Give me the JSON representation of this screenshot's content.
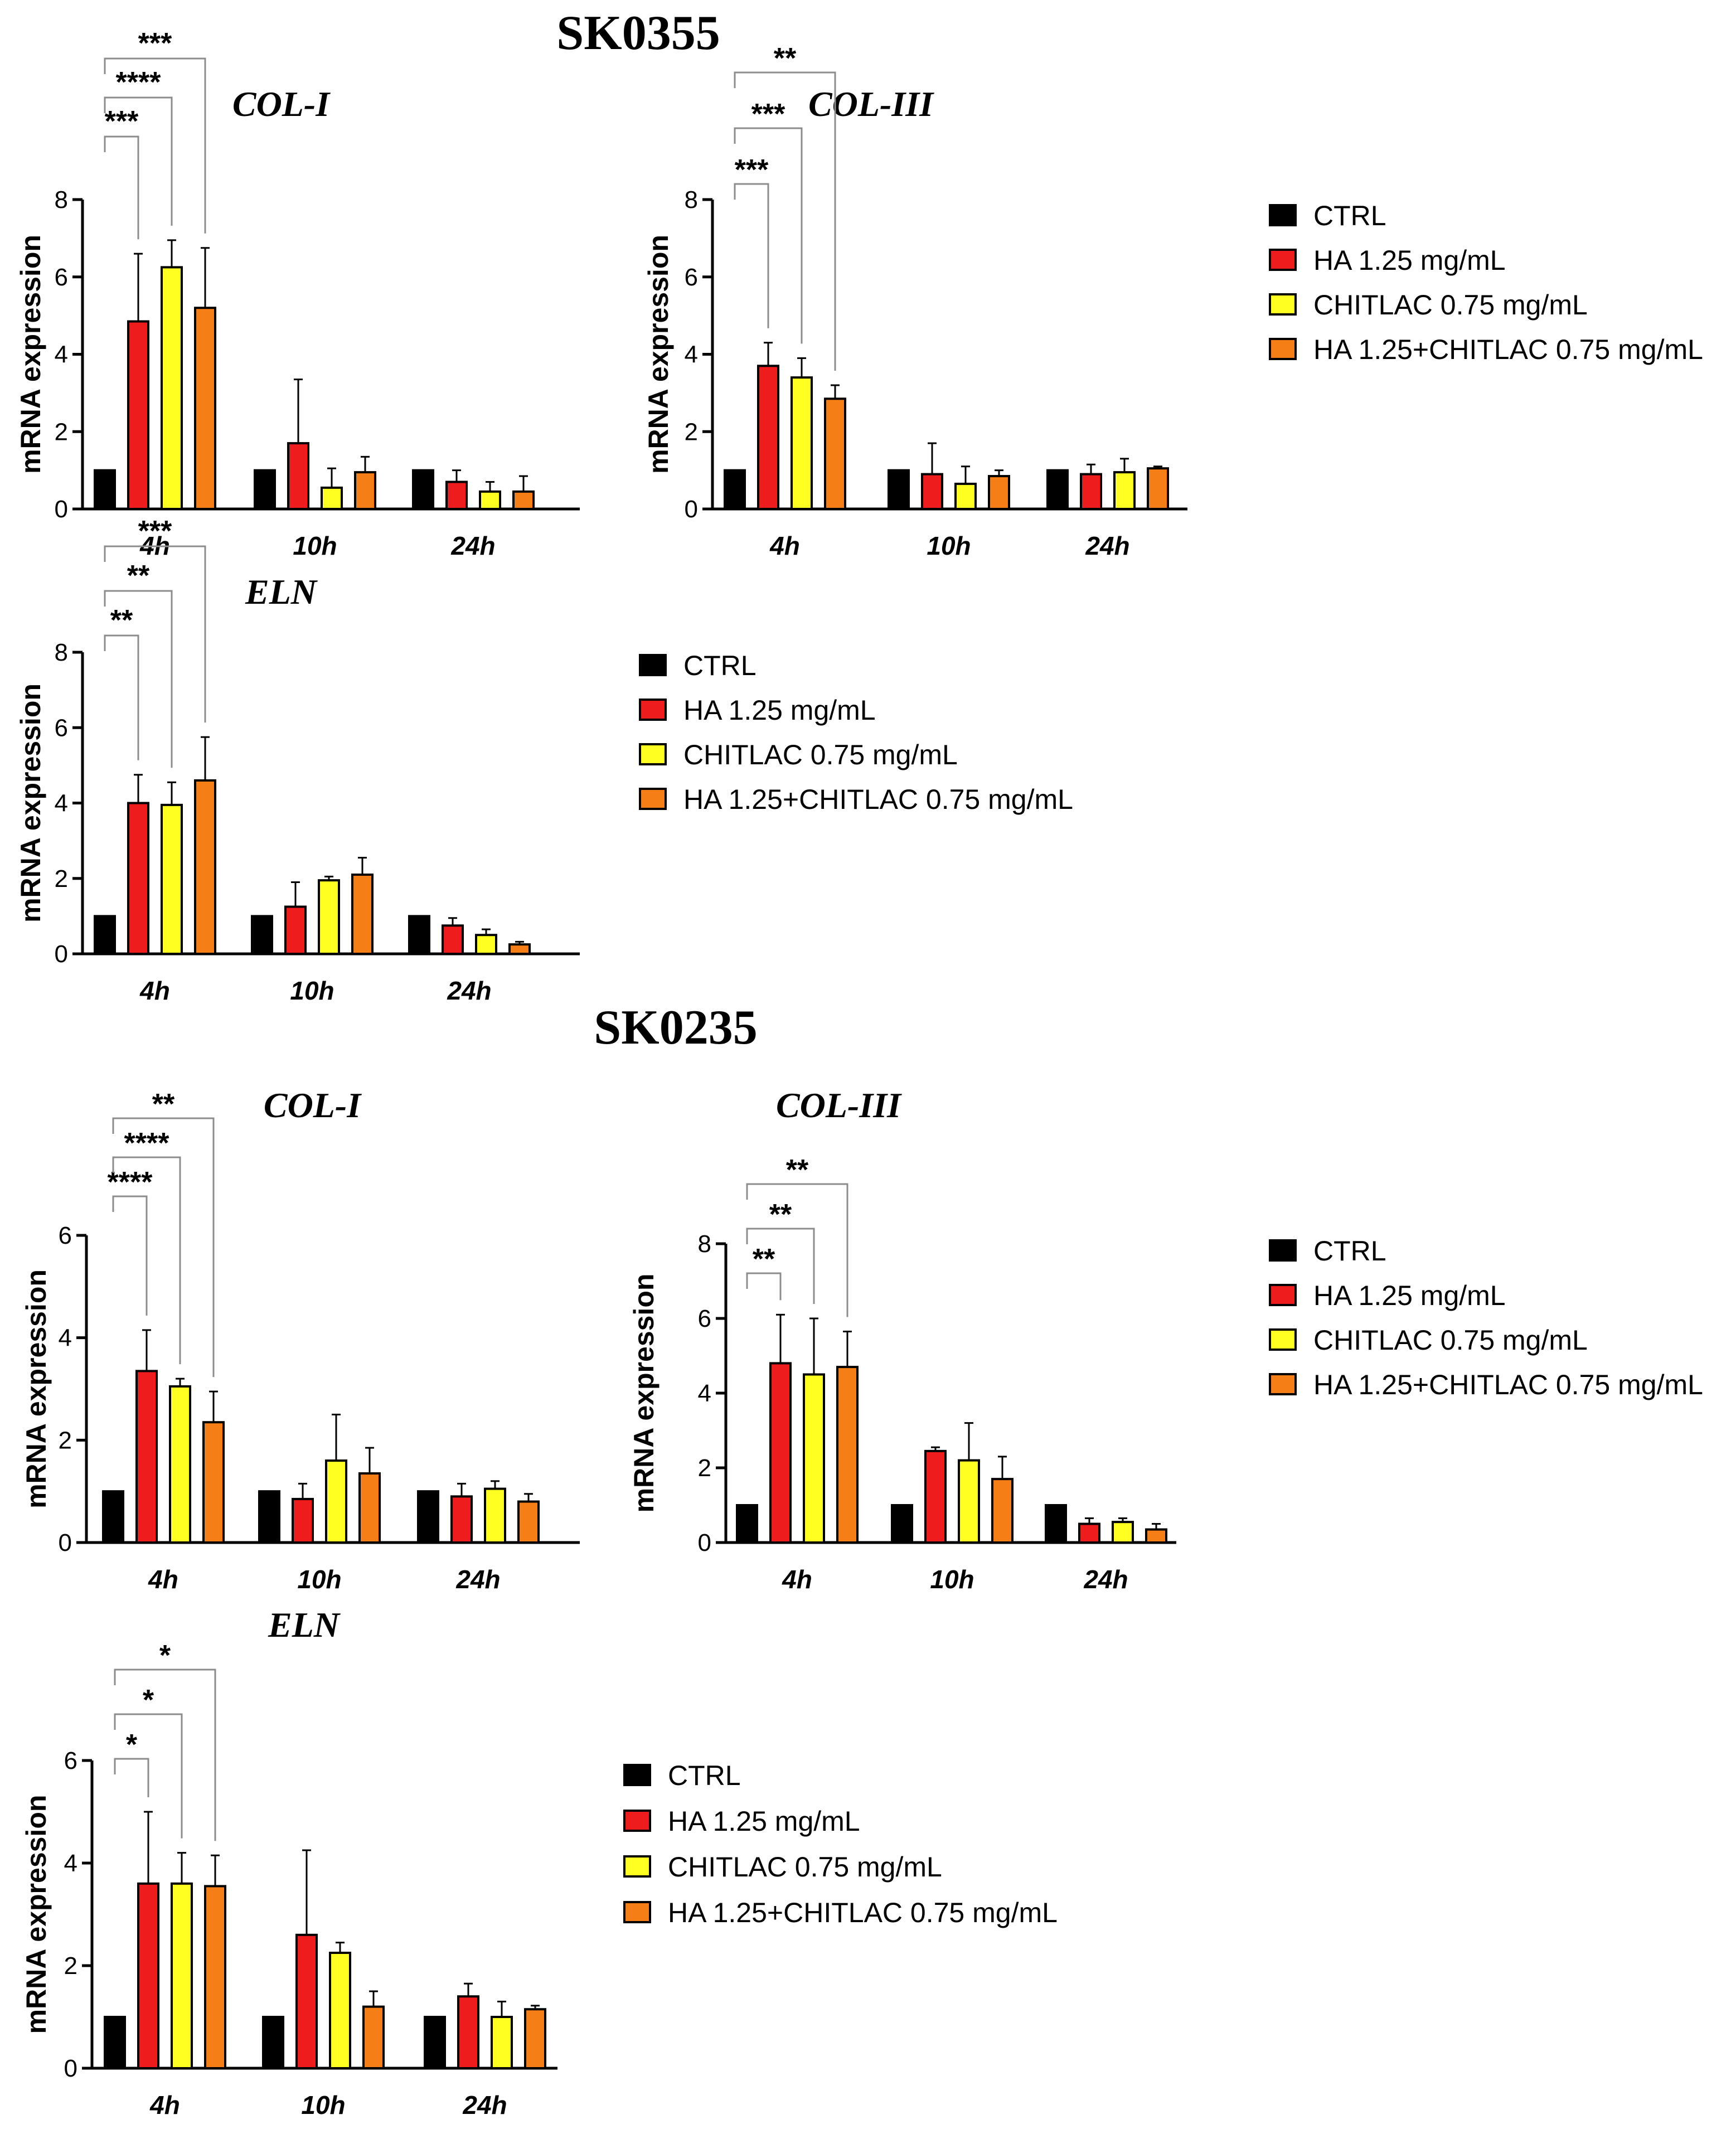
{
  "sections": [
    {
      "title": "SK0355"
    },
    {
      "title": "SK0235"
    }
  ],
  "colors": {
    "CTRL": "#000000",
    "HA 1.25 mg/mL": "#ee1c1c",
    "CHITLAC 0.75 mg/mL": "#ffff22",
    "HA 1.25+CHITLAC 0.75 mg/mL": "#f57f16"
  },
  "legend_entries": [
    "CTRL",
    "HA 1.25 mg/mL",
    "CHITLAC 0.75 mg/mL",
    "HA 1.25+CHITLAC 0.75 mg/mL"
  ],
  "chart_data": [
    {
      "type": "bar",
      "section": "SK0355",
      "title": "COL-I",
      "ylabel": "mRNA expression",
      "ylim": [
        0,
        8
      ],
      "yticks": [
        0,
        2,
        4,
        6,
        8
      ],
      "categories": [
        "4h",
        "10h",
        "24h"
      ],
      "series": [
        {
          "name": "CTRL",
          "values": [
            1.0,
            1.0,
            1.0
          ],
          "errors": [
            0,
            0,
            0
          ]
        },
        {
          "name": "HA 1.25 mg/mL",
          "values": [
            4.85,
            1.7,
            0.7
          ],
          "errors": [
            1.75,
            1.65,
            0.3
          ]
        },
        {
          "name": "CHITLAC 0.75 mg/mL",
          "values": [
            6.25,
            0.55,
            0.45
          ],
          "errors": [
            0.7,
            0.5,
            0.25
          ]
        },
        {
          "name": "HA 1.25+CHITLAC 0.75 mg/mL",
          "values": [
            5.2,
            0.95,
            0.45
          ],
          "errors": [
            1.55,
            0.4,
            0.4
          ]
        }
      ],
      "significance": [
        {
          "series": 1,
          "label": "***"
        },
        {
          "series": 2,
          "label": "****"
        },
        {
          "series": 3,
          "label": "***"
        }
      ]
    },
    {
      "type": "bar",
      "section": "SK0355",
      "title": "COL-III",
      "ylabel": "mRNA expression",
      "ylim": [
        0,
        8
      ],
      "yticks": [
        0,
        2,
        4,
        6,
        8
      ],
      "categories": [
        "4h",
        "10h",
        "24h"
      ],
      "series": [
        {
          "name": "CTRL",
          "values": [
            1.0,
            1.0,
            1.0
          ],
          "errors": [
            0,
            0,
            0
          ]
        },
        {
          "name": "HA 1.25 mg/mL",
          "values": [
            3.7,
            0.9,
            0.9
          ],
          "errors": [
            0.6,
            0.8,
            0.25
          ]
        },
        {
          "name": "CHITLAC 0.75 mg/mL",
          "values": [
            3.4,
            0.65,
            0.95
          ],
          "errors": [
            0.5,
            0.45,
            0.35
          ]
        },
        {
          "name": "HA 1.25+CHITLAC 0.75 mg/mL",
          "values": [
            2.85,
            0.85,
            1.05
          ],
          "errors": [
            0.35,
            0.15,
            0.05
          ]
        }
      ],
      "significance": [
        {
          "series": 1,
          "label": "***"
        },
        {
          "series": 2,
          "label": "***"
        },
        {
          "series": 3,
          "label": "**"
        }
      ]
    },
    {
      "type": "bar",
      "section": "SK0355",
      "title": "ELN",
      "ylabel": "mRNA expression",
      "ylim": [
        0,
        8
      ],
      "yticks": [
        0,
        2,
        4,
        6,
        8
      ],
      "categories": [
        "4h",
        "10h",
        "24h"
      ],
      "series": [
        {
          "name": "CTRL",
          "values": [
            1.0,
            1.0,
            1.0
          ],
          "errors": [
            0,
            0,
            0
          ]
        },
        {
          "name": "HA 1.25 mg/mL",
          "values": [
            4.0,
            1.25,
            0.75
          ],
          "errors": [
            0.75,
            0.65,
            0.2
          ]
        },
        {
          "name": "CHITLAC 0.75 mg/mL",
          "values": [
            3.95,
            1.95,
            0.5
          ],
          "errors": [
            0.6,
            0.1,
            0.15
          ]
        },
        {
          "name": "HA 1.25+CHITLAC 0.75 mg/mL",
          "values": [
            4.6,
            2.1,
            0.25
          ],
          "errors": [
            1.15,
            0.45,
            0.07
          ]
        }
      ],
      "significance": [
        {
          "series": 1,
          "label": "**"
        },
        {
          "series": 2,
          "label": "**"
        },
        {
          "series": 3,
          "label": "***"
        }
      ]
    },
    {
      "type": "bar",
      "section": "SK0235",
      "title": "COL-I",
      "ylabel": "mRNA expression",
      "ylim": [
        0,
        6
      ],
      "yticks": [
        0,
        2,
        4,
        6
      ],
      "categories": [
        "4h",
        "10h",
        "24h"
      ],
      "series": [
        {
          "name": "CTRL",
          "values": [
            1.0,
            1.0,
            1.0
          ],
          "errors": [
            0,
            0,
            0
          ]
        },
        {
          "name": "HA 1.25 mg/mL",
          "values": [
            3.35,
            0.85,
            0.9
          ],
          "errors": [
            0.8,
            0.3,
            0.25
          ]
        },
        {
          "name": "CHITLAC 0.75 mg/mL",
          "values": [
            3.05,
            1.6,
            1.05
          ],
          "errors": [
            0.15,
            0.9,
            0.15
          ]
        },
        {
          "name": "HA 1.25+CHITLAC 0.75 mg/mL",
          "values": [
            2.35,
            1.35,
            0.8
          ],
          "errors": [
            0.6,
            0.5,
            0.15
          ]
        }
      ],
      "significance": [
        {
          "series": 1,
          "label": "****"
        },
        {
          "series": 2,
          "label": "****"
        },
        {
          "series": 3,
          "label": "**"
        }
      ]
    },
    {
      "type": "bar",
      "section": "SK0235",
      "title": "COL-III",
      "ylabel": "mRNA expression",
      "ylim": [
        0,
        8
      ],
      "yticks": [
        0,
        2,
        4,
        6,
        8
      ],
      "categories": [
        "4h",
        "10h",
        "24h"
      ],
      "series": [
        {
          "name": "CTRL",
          "values": [
            1.0,
            1.0,
            1.0
          ],
          "errors": [
            0,
            0,
            0
          ]
        },
        {
          "name": "HA 1.25 mg/mL",
          "values": [
            4.8,
            2.45,
            0.5
          ],
          "errors": [
            1.3,
            0.1,
            0.15
          ]
        },
        {
          "name": "CHITLAC 0.75 mg/mL",
          "values": [
            4.5,
            2.2,
            0.55
          ],
          "errors": [
            1.5,
            1.0,
            0.1
          ]
        },
        {
          "name": "HA 1.25+CHITLAC 0.75 mg/mL",
          "values": [
            4.7,
            1.7,
            0.35
          ],
          "errors": [
            0.95,
            0.6,
            0.15
          ]
        }
      ],
      "significance": [
        {
          "series": 1,
          "label": "**"
        },
        {
          "series": 2,
          "label": "**"
        },
        {
          "series": 3,
          "label": "**"
        }
      ]
    },
    {
      "type": "bar",
      "section": "SK0235",
      "title": "ELN",
      "ylabel": "mRNA expression",
      "ylim": [
        0,
        6
      ],
      "yticks": [
        0,
        2,
        4,
        6
      ],
      "categories": [
        "4h",
        "10h",
        "24h"
      ],
      "series": [
        {
          "name": "CTRL",
          "values": [
            1.0,
            1.0,
            1.0
          ],
          "errors": [
            0,
            0,
            0
          ]
        },
        {
          "name": "HA 1.25 mg/mL",
          "values": [
            3.6,
            2.6,
            1.4
          ],
          "errors": [
            1.4,
            1.65,
            0.25
          ]
        },
        {
          "name": "CHITLAC 0.75 mg/mL",
          "values": [
            3.6,
            2.25,
            1.0
          ],
          "errors": [
            0.6,
            0.2,
            0.3
          ]
        },
        {
          "name": "HA 1.25+CHITLAC 0.75 mg/mL",
          "values": [
            3.55,
            1.2,
            1.15
          ],
          "errors": [
            0.6,
            0.3,
            0.07
          ]
        }
      ],
      "significance": [
        {
          "series": 1,
          "label": "*"
        },
        {
          "series": 2,
          "label": "*"
        },
        {
          "series": 3,
          "label": "*"
        }
      ]
    }
  ]
}
